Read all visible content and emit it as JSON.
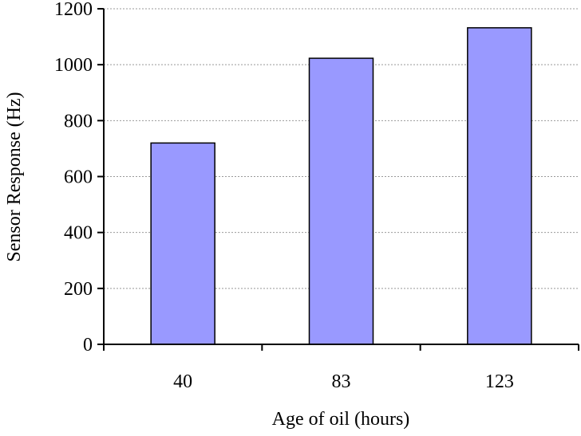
{
  "chart_data": {
    "type": "bar",
    "categories": [
      "40",
      "83",
      "123"
    ],
    "values": [
      720,
      1023,
      1132
    ],
    "title": "",
    "xlabel": "Age of oil (hours)",
    "ylabel": "Sensor Response (Hz)",
    "ylim": [
      0,
      1200
    ],
    "yticks": [
      0,
      200,
      400,
      600,
      800,
      1000,
      1200
    ],
    "grid": true,
    "colors": {
      "bar_fill": "#9999ff",
      "bar_stroke": "#000000",
      "grid": "#999999",
      "axis": "#000000"
    }
  }
}
